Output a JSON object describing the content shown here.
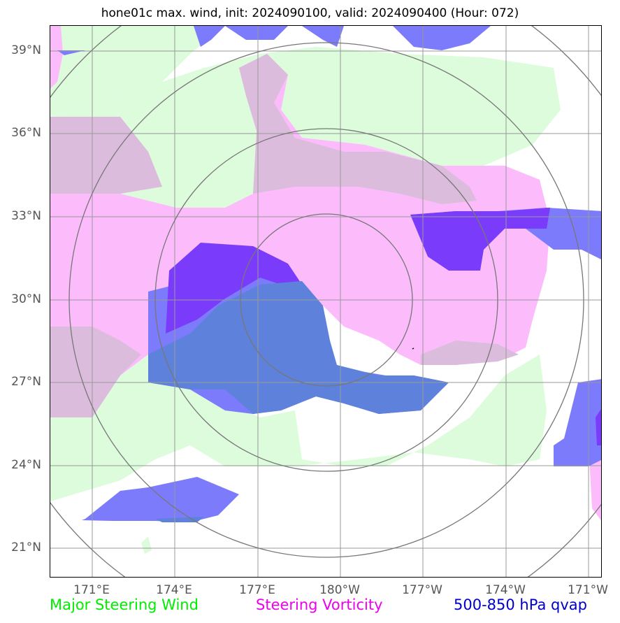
{
  "title": "hone01c max. wind, init: 2024090100, valid: 2024090400 (Hour: 072)",
  "lat_labels": [
    "39°N",
    "36°N",
    "33°N",
    "30°N",
    "27°N",
    "24°N",
    "21°N"
  ],
  "lon_labels": [
    "171°E",
    "174°E",
    "177°E",
    "180°W",
    "177°W",
    "174°W",
    "171°W"
  ],
  "legend": {
    "steering_wind": "Major Steering Wind",
    "steering_vorticity": "Steering Vorticity",
    "qvap": "500-850 hPa qvap"
  },
  "colors": {
    "steering_wind": "#00ee00",
    "steering_vorticity": "#ee00ee",
    "qvap": "#0000cc",
    "wind_fill": "#dcfcdc",
    "vorticity_fill": "#fcbcfc",
    "overlap_fill": "#dcbcdc",
    "qvap_fill": "#7b7bfb",
    "qvap_dark_fill": "#7b3bfb",
    "qvap_over_wind_fill": "#5e82dc",
    "range_rings": "#777777",
    "gridlines": "#999999"
  }
}
